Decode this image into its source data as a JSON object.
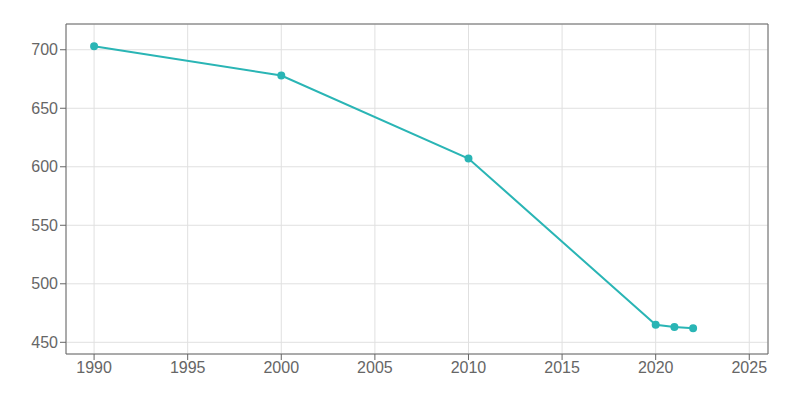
{
  "chart_data": {
    "type": "line",
    "x": [
      1990,
      2000,
      2010,
      2020,
      2021,
      2022
    ],
    "values": [
      703,
      678,
      607,
      465,
      463,
      462
    ],
    "color": "#2ab5b5",
    "marker": "circle",
    "xlim": [
      1988.5,
      2026
    ],
    "xticks": [
      1990,
      1995,
      2000,
      2005,
      2010,
      2015,
      2020,
      2025
    ],
    "ylim": [
      440,
      722
    ],
    "yticks": [
      450,
      500,
      550,
      600,
      650,
      700
    ],
    "grid": true
  }
}
